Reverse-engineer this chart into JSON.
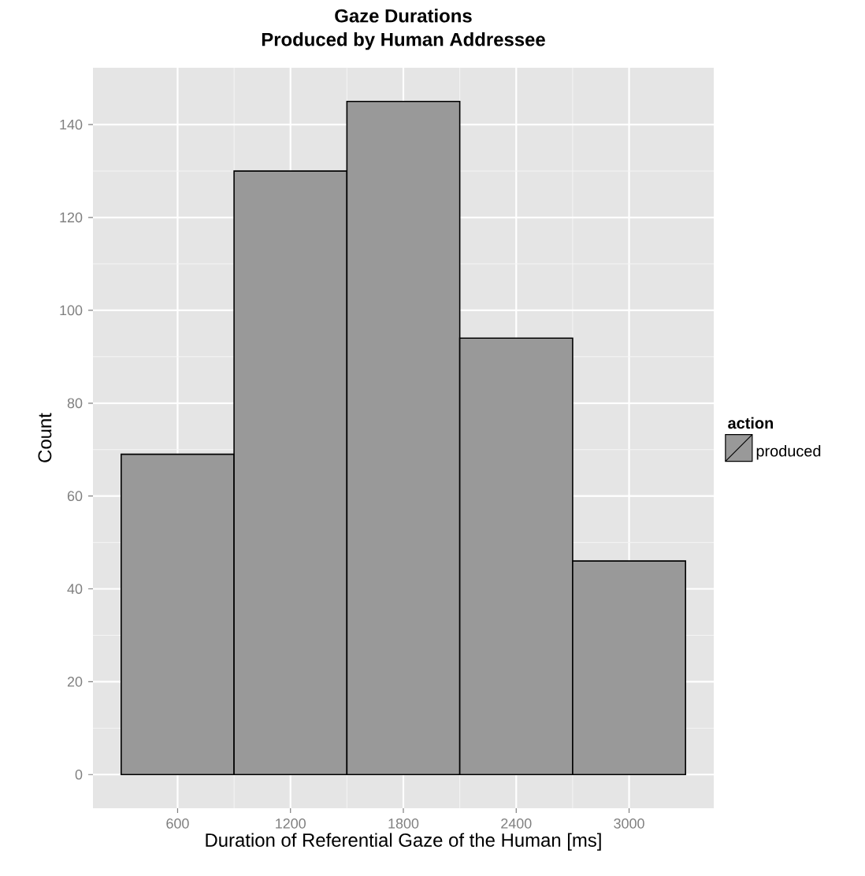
{
  "chart_data": {
    "type": "histogram",
    "title": "Gaze Durations",
    "subtitle": "Produced by Human Addressee",
    "xlabel": "Duration of Referential Gaze of the Human [ms]",
    "ylabel": "Count",
    "legend_title": "action",
    "bins": [
      300,
      900,
      1500,
      2100,
      2700,
      3300
    ],
    "series": [
      {
        "name": "produced",
        "color": "#999999",
        "values": [
          69,
          130,
          145,
          94,
          46
        ]
      }
    ],
    "xlim": [
      150,
      3450
    ],
    "ylim": [
      -7.25,
      152.25
    ],
    "xticks": [
      600,
      1200,
      1800,
      2400,
      3000
    ],
    "yticks": [
      0,
      20,
      40,
      60,
      80,
      100,
      120,
      140
    ],
    "grid": true,
    "legend": "right"
  }
}
